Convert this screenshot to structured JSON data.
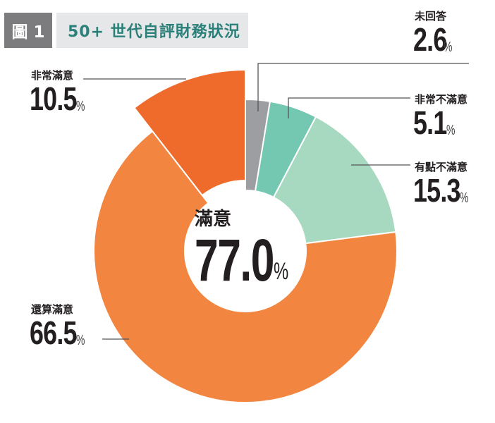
{
  "header": {
    "figure_tag": "圖 1",
    "title": "50+ 世代自評財務狀況"
  },
  "colors": {
    "no_answer": "#9c9ea1",
    "very_unsatisfied": "#74c7b0",
    "somewhat_unsatisfied": "#a7d9c0",
    "fairly_satisfied": "#f2853f",
    "very_satisfied": "#ef6b2b",
    "title_text": "#2b8079",
    "tag_bg": "#7c7c7e",
    "title_bg": "#e6e7e9"
  },
  "center": {
    "label": "滿意",
    "value": "77.0",
    "unit": "%"
  },
  "labels": [
    {
      "name": "未回答",
      "value": "2.6",
      "unit": "%"
    },
    {
      "name": "非常不滿意",
      "value": "5.1",
      "unit": "%"
    },
    {
      "name": "有點不滿意",
      "value": "15.3",
      "unit": "%"
    },
    {
      "name": "還算滿意",
      "value": "66.5",
      "unit": "%"
    },
    {
      "name": "非常滿意",
      "value": "10.5",
      "unit": "%"
    }
  ],
  "chart_data": {
    "type": "pie",
    "subtype": "donut",
    "title": "50+ 世代自評財務狀況",
    "figure_label": "圖 1",
    "categories": [
      "未回答",
      "非常不滿意",
      "有點不滿意",
      "還算滿意",
      "非常滿意"
    ],
    "values": [
      2.6,
      5.1,
      15.3,
      66.5,
      10.5
    ],
    "unit": "%",
    "colors": [
      "#9c9ea1",
      "#74c7b0",
      "#a7d9c0",
      "#f2853f",
      "#ef6b2b"
    ],
    "start_angle": "12 o'clock",
    "direction": "clockwise",
    "exploded": [
      "非常滿意"
    ],
    "center_annotation": {
      "label": "滿意",
      "value": 77.0,
      "unit": "%"
    },
    "legend": "callout labels with leader lines"
  }
}
